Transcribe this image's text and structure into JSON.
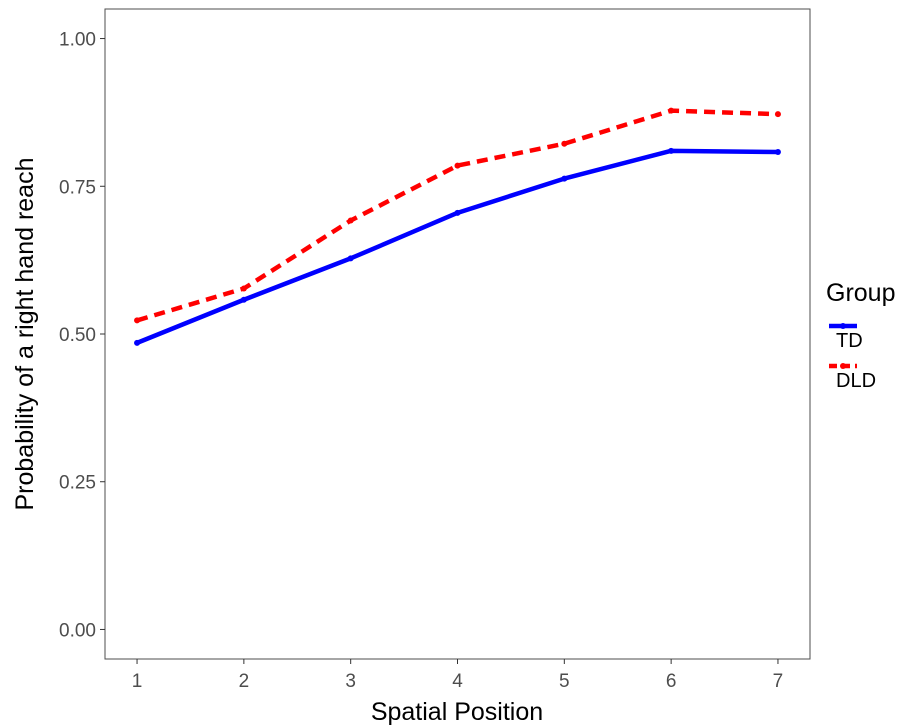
{
  "chart_data": {
    "type": "line",
    "title": "",
    "xlabel": "Spatial Position",
    "ylabel": "Probability of a right hand reach",
    "x": [
      1,
      2,
      3,
      4,
      5,
      6,
      7
    ],
    "x_tick_labels": [
      "1",
      "2",
      "3",
      "4",
      "5",
      "6",
      "7"
    ],
    "xlim": [
      0.7,
      7.3
    ],
    "ylim": [
      -0.05,
      1.05
    ],
    "y_ticks": [
      0.0,
      0.25,
      0.5,
      0.75,
      1.0
    ],
    "y_tick_labels": [
      "0.00",
      "0.25",
      "0.50",
      "0.75",
      "1.00"
    ],
    "grid": false,
    "legend": {
      "title": "Group",
      "placement": "right"
    },
    "series": [
      {
        "name": "TD",
        "color": "#0000ff",
        "linestyle": "solid",
        "values": [
          0.485,
          0.558,
          0.628,
          0.705,
          0.763,
          0.81,
          0.808
        ]
      },
      {
        "name": "DLD",
        "color": "#ff0000",
        "linestyle": "dashed",
        "values": [
          0.523,
          0.577,
          0.692,
          0.785,
          0.822,
          0.878,
          0.872
        ]
      }
    ]
  }
}
